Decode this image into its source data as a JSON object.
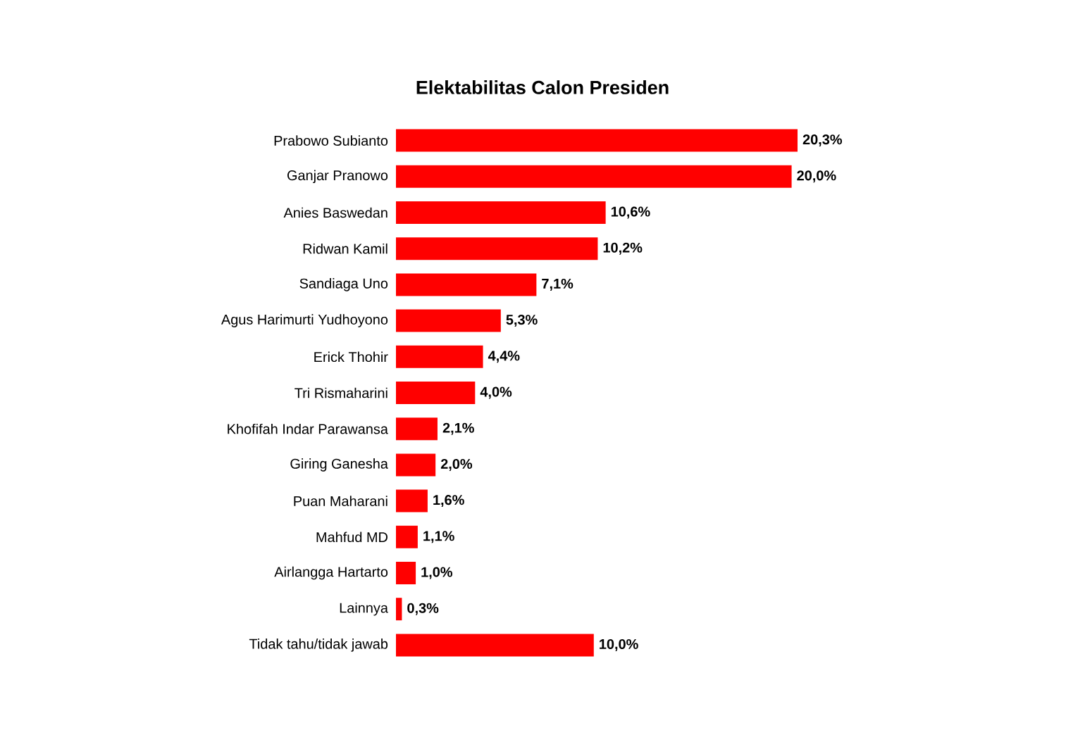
{
  "chart_data": {
    "type": "bar",
    "orientation": "horizontal",
    "title": "Elektabilitas Calon Presiden",
    "categories": [
      "Prabowo Subianto",
      "Ganjar Pranowo",
      "Anies Baswedan",
      "Ridwan Kamil",
      "Sandiaga Uno",
      "Agus Harimurti Yudhoyono",
      "Erick Thohir",
      "Tri Rismaharini",
      "Khofifah Indar Parawansa",
      "Giring Ganesha",
      "Puan Maharani",
      "Mahfud MD",
      "Airlangga Hartarto",
      "Lainnya",
      "Tidak tahu/tidak jawab"
    ],
    "values": [
      20.3,
      20.0,
      10.6,
      10.2,
      7.1,
      5.3,
      4.4,
      4.0,
      2.1,
      2.0,
      1.6,
      1.1,
      1.0,
      0.3,
      10.0
    ],
    "value_labels": [
      "20,3%",
      "20,0%",
      "10,6%",
      "10,2%",
      "7,1%",
      "5,3%",
      "4,4%",
      "4,0%",
      "2,1%",
      "2,0%",
      "1,6%",
      "1,1%",
      "1,0%",
      "0,3%",
      "10,0%"
    ],
    "color": "#ff0000"
  }
}
